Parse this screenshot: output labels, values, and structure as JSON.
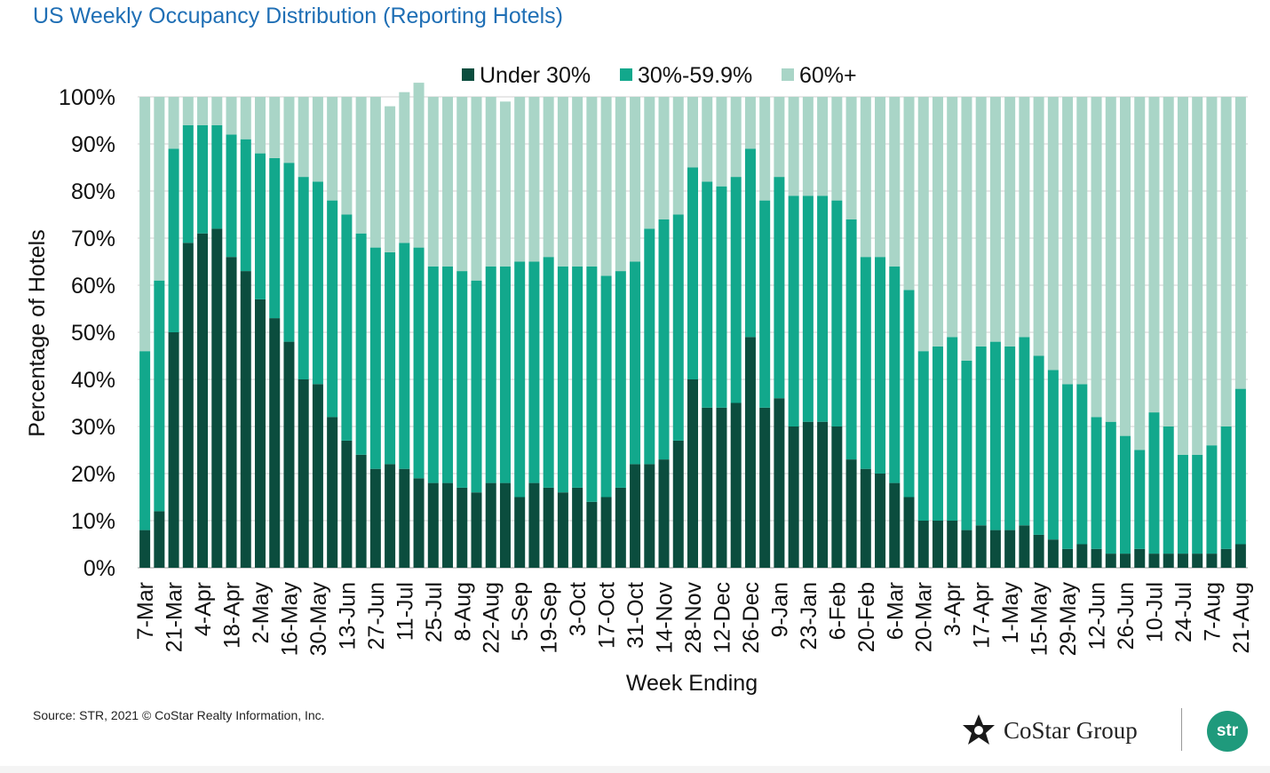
{
  "header": {
    "title": "US Weekly Occupancy Distribution (Reporting Hotels)"
  },
  "footer": {
    "source": "Source: STR, 2021 © CoStar Realty Information, Inc.",
    "costar_logo_text": "CoStar Group",
    "str_logo_text": "str"
  },
  "colors": {
    "under30": "#0b4d3e",
    "mid": "#12a88c",
    "over60": "#a9d5c7",
    "title": "#1f6fb5"
  },
  "chart_data": {
    "type": "bar",
    "stacked": true,
    "title": "",
    "xlabel": "Week Ending",
    "ylabel": "Percentage of Hotels",
    "ylim": [
      0,
      100
    ],
    "yticks": [
      "0%",
      "10%",
      "20%",
      "30%",
      "40%",
      "50%",
      "60%",
      "70%",
      "80%",
      "90%",
      "100%"
    ],
    "legend_position": "top-center",
    "grid": true,
    "x_tick_labels": [
      "7-Mar",
      "21-Mar",
      "4-Apr",
      "18-Apr",
      "2-May",
      "16-May",
      "30-May",
      "13-Jun",
      "27-Jun",
      "11-Jul",
      "25-Jul",
      "8-Aug",
      "22-Aug",
      "5-Sep",
      "19-Sep",
      "3-Oct",
      "17-Oct",
      "31-Oct",
      "14-Nov",
      "28-Nov",
      "12-Dec",
      "26-Dec",
      "9-Jan",
      "23-Jan",
      "6-Feb",
      "20-Feb",
      "6-Mar",
      "20-Mar",
      "3-Apr",
      "17-Apr",
      "1-May",
      "15-May",
      "29-May",
      "12-Jun",
      "26-Jun",
      "10-Jul",
      "24-Jul",
      "7-Aug",
      "21-Aug"
    ],
    "series": [
      {
        "name": "Under 30%",
        "values": [
          8,
          12,
          50,
          69,
          71,
          72,
          66,
          63,
          57,
          53,
          48,
          40,
          39,
          32,
          27,
          24,
          21,
          22,
          21,
          19,
          18,
          18,
          17,
          16,
          18,
          18,
          15,
          18,
          17,
          16,
          17,
          14,
          15,
          17,
          22,
          22,
          23,
          27,
          40,
          34,
          34,
          35,
          49,
          34,
          36,
          30,
          31,
          31,
          30,
          23,
          21,
          20,
          18,
          15,
          10,
          10,
          10,
          8,
          9,
          8,
          8,
          9,
          7,
          6,
          4,
          5,
          4,
          3,
          3,
          4,
          3,
          3,
          3,
          3,
          3,
          4,
          5
        ]
      },
      {
        "name": "30%-59.9%",
        "values": [
          38,
          49,
          39,
          25,
          23,
          22,
          26,
          28,
          31,
          34,
          38,
          43,
          43,
          46,
          48,
          47,
          47,
          45,
          48,
          49,
          46,
          46,
          46,
          45,
          46,
          46,
          50,
          47,
          49,
          48,
          47,
          50,
          47,
          46,
          43,
          50,
          51,
          48,
          45,
          48,
          47,
          48,
          40,
          44,
          47,
          49,
          48,
          48,
          48,
          51,
          45,
          46,
          46,
          44,
          36,
          37,
          39,
          36,
          38,
          40,
          39,
          40,
          38,
          36,
          35,
          34,
          28,
          28,
          25,
          21,
          30,
          27,
          21,
          21,
          23,
          26,
          33
        ]
      },
      {
        "name": "60%+",
        "values": [
          54,
          39,
          11,
          6,
          6,
          6,
          8,
          9,
          12,
          13,
          14,
          17,
          18,
          22,
          25,
          29,
          32,
          31,
          32,
          35,
          36,
          36,
          37,
          39,
          36,
          35,
          35,
          35,
          34,
          36,
          36,
          36,
          38,
          37,
          35,
          28,
          26,
          25,
          15,
          18,
          19,
          17,
          11,
          22,
          17,
          21,
          21,
          21,
          22,
          26,
          34,
          34,
          36,
          41,
          54,
          53,
          51,
          56,
          53,
          52,
          53,
          51,
          55,
          58,
          61,
          61,
          68,
          69,
          72,
          75,
          67,
          70,
          76,
          76,
          74,
          70,
          62
        ]
      }
    ]
  }
}
